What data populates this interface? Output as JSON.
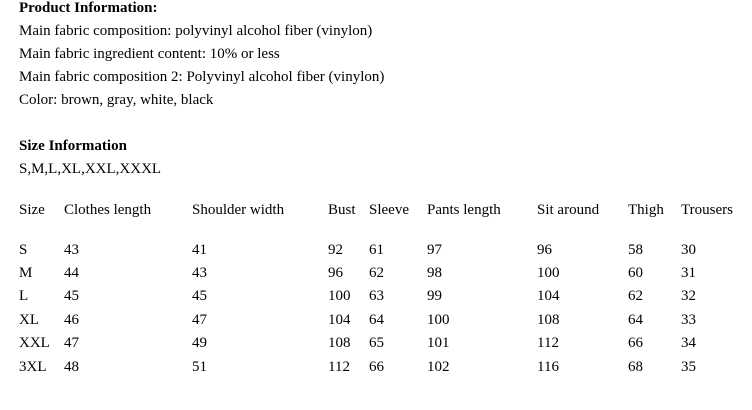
{
  "product_info": {
    "title": "Product Information:",
    "lines": [
      "Main fabric composition: polyvinyl alcohol fiber (vinylon)",
      "Main fabric ingredient content: 10% or less",
      "Main fabric composition 2: Polyvinyl alcohol fiber (vinylon)",
      "Color: brown, gray, white, black"
    ]
  },
  "size_info": {
    "title": "Size Information",
    "sizes": "S,M,L,XL,XXL,XXXL"
  },
  "table": {
    "header": [
      "Size",
      "Clothes length",
      "Shoulder width",
      "Bust",
      "Sleeve",
      "Pants length",
      "Sit around",
      "Thigh",
      "Trousers"
    ],
    "rows": [
      [
        "S",
        43,
        41,
        92,
        61,
        97,
        96,
        58,
        30
      ],
      [
        "M",
        44,
        43,
        96,
        62,
        98,
        100,
        60,
        31
      ],
      [
        "L",
        45,
        45,
        100,
        63,
        99,
        104,
        62,
        32
      ],
      [
        "XL",
        46,
        47,
        104,
        64,
        100,
        108,
        64,
        33
      ],
      [
        "XXL",
        47,
        49,
        108,
        65,
        101,
        112,
        66,
        34
      ],
      [
        "3XL",
        48,
        51,
        112,
        66,
        102,
        116,
        68,
        35
      ]
    ]
  }
}
